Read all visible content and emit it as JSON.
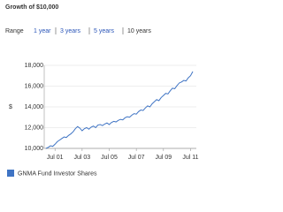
{
  "range": {
    "label": "Range",
    "options": [
      "1 year",
      "3 years",
      "5 years",
      "10 years"
    ]
  },
  "chart_data": {
    "type": "line",
    "title": "Growth of $10,000",
    "ylabel": "$",
    "categories": [
      null,
      null,
      null,
      null,
      "Jul 01",
      null,
      null,
      null,
      null,
      null,
      null,
      null,
      null,
      null,
      null,
      null,
      "Jul 03",
      null,
      null,
      null,
      null,
      null,
      null,
      null,
      null,
      null,
      null,
      null,
      "Jul 05",
      null,
      null,
      null,
      null,
      null,
      null,
      null,
      null,
      null,
      null,
      null,
      "Jul 07",
      null,
      null,
      null,
      null,
      null,
      null,
      null,
      null,
      null,
      null,
      null,
      "Jul 09",
      null,
      null,
      null,
      null,
      null,
      null,
      null,
      null,
      null,
      null,
      null,
      "Jul 11",
      null
    ],
    "series": [
      {
        "name": "GNMA Fund Investor Shares",
        "color": "#3f74c4",
        "values": [
          10000,
          10100,
          10250,
          10200,
          10400,
          10650,
          10800,
          10950,
          11100,
          11050,
          11250,
          11400,
          11600,
          11900,
          12100,
          11950,
          11700,
          11900,
          12000,
          11850,
          12050,
          12150,
          12000,
          12250,
          12300,
          12200,
          12350,
          12450,
          12300,
          12500,
          12600,
          12550,
          12700,
          12800,
          12750,
          12950,
          13050,
          13000,
          13200,
          13350,
          13300,
          13550,
          13700,
          13650,
          13900,
          14100,
          14000,
          14300,
          14500,
          14700,
          14600,
          14900,
          15100,
          15300,
          15250,
          15550,
          15800,
          15750,
          16050,
          16300,
          16400,
          16550,
          16500,
          16800,
          17000,
          17400
        ]
      }
    ],
    "ylim": [
      10000,
      18000
    ],
    "yticks": [
      {
        "value": 10000,
        "label": "10,000"
      },
      {
        "value": 12000,
        "label": "12,000"
      },
      {
        "value": 14000,
        "label": "14,000"
      },
      {
        "value": 16000,
        "label": "16,000"
      },
      {
        "value": 18000,
        "label": "18,000"
      }
    ],
    "grid": true
  }
}
